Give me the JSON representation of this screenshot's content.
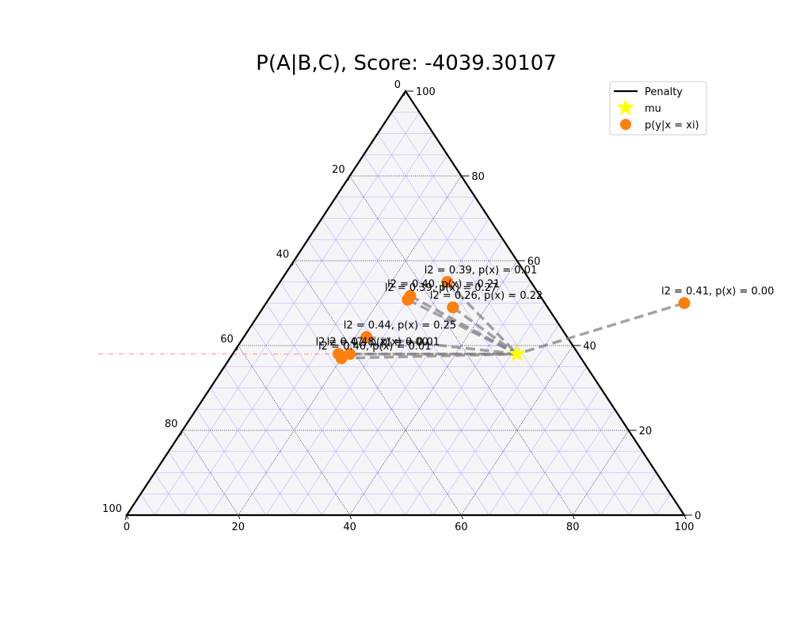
{
  "chart_data": {
    "type": "scatter",
    "subtype": "ternary",
    "title": "P(A|B,C), Score: -4039.30107",
    "scale": 100,
    "ticks": [
      "0",
      "20",
      "40",
      "60",
      "80",
      "100"
    ],
    "grid": true,
    "legend": {
      "placement": "top-right",
      "entries": [
        {
          "label": "Penalty",
          "marker": "line",
          "color": "#000000"
        },
        {
          "label": "mu",
          "marker": "star",
          "color": "#ffff00"
        },
        {
          "label": "p(y|x = xi)",
          "marker": "circle",
          "color": "#ff7f0e"
        }
      ]
    },
    "mu": {
      "x": 51.0,
      "y": 38.0
    },
    "points": [
      {
        "x": 30.0,
        "y": 55.0,
        "label": "l2 = 0.39, p(x) = 0.01"
      },
      {
        "x": 75.0,
        "y": 50.0,
        "label": "l2 = 0.41, p(x) = 0.00"
      },
      {
        "x": 25.0,
        "y": 51.7,
        "label": "l2 = 0.40, p(x) = 0.21"
      },
      {
        "x": 25.0,
        "y": 50.8,
        "label": "l2 = 0.39, p(x) = 0.27"
      },
      {
        "x": 34.0,
        "y": 49.0,
        "label": "l2 = 0.26, p(x) = 0.22"
      },
      {
        "x": 22.0,
        "y": 42.0,
        "label": "l2 = 0.44, p(x) = 0.25"
      },
      {
        "x": 19.0,
        "y": 38.0,
        "label": "l2 = 0.47, p(x) = 0.00"
      },
      {
        "x": 21.0,
        "y": 38.0,
        "label": "l2 = 0.48, p(x) = 0.01"
      },
      {
        "x": 20.0,
        "y": 37.0,
        "label": "l2 = 0.46, p(x) = 0.01"
      }
    ],
    "colors": {
      "frame": "#000000",
      "background": "#f5f5f7",
      "fine_grid": "#b4b4ff",
      "major_grid": "#0a0a6e",
      "point": "#ff7f0e",
      "mu": "#ffff00",
      "link": "#7f7f7f",
      "reference_line": "#ff8c8c"
    }
  }
}
